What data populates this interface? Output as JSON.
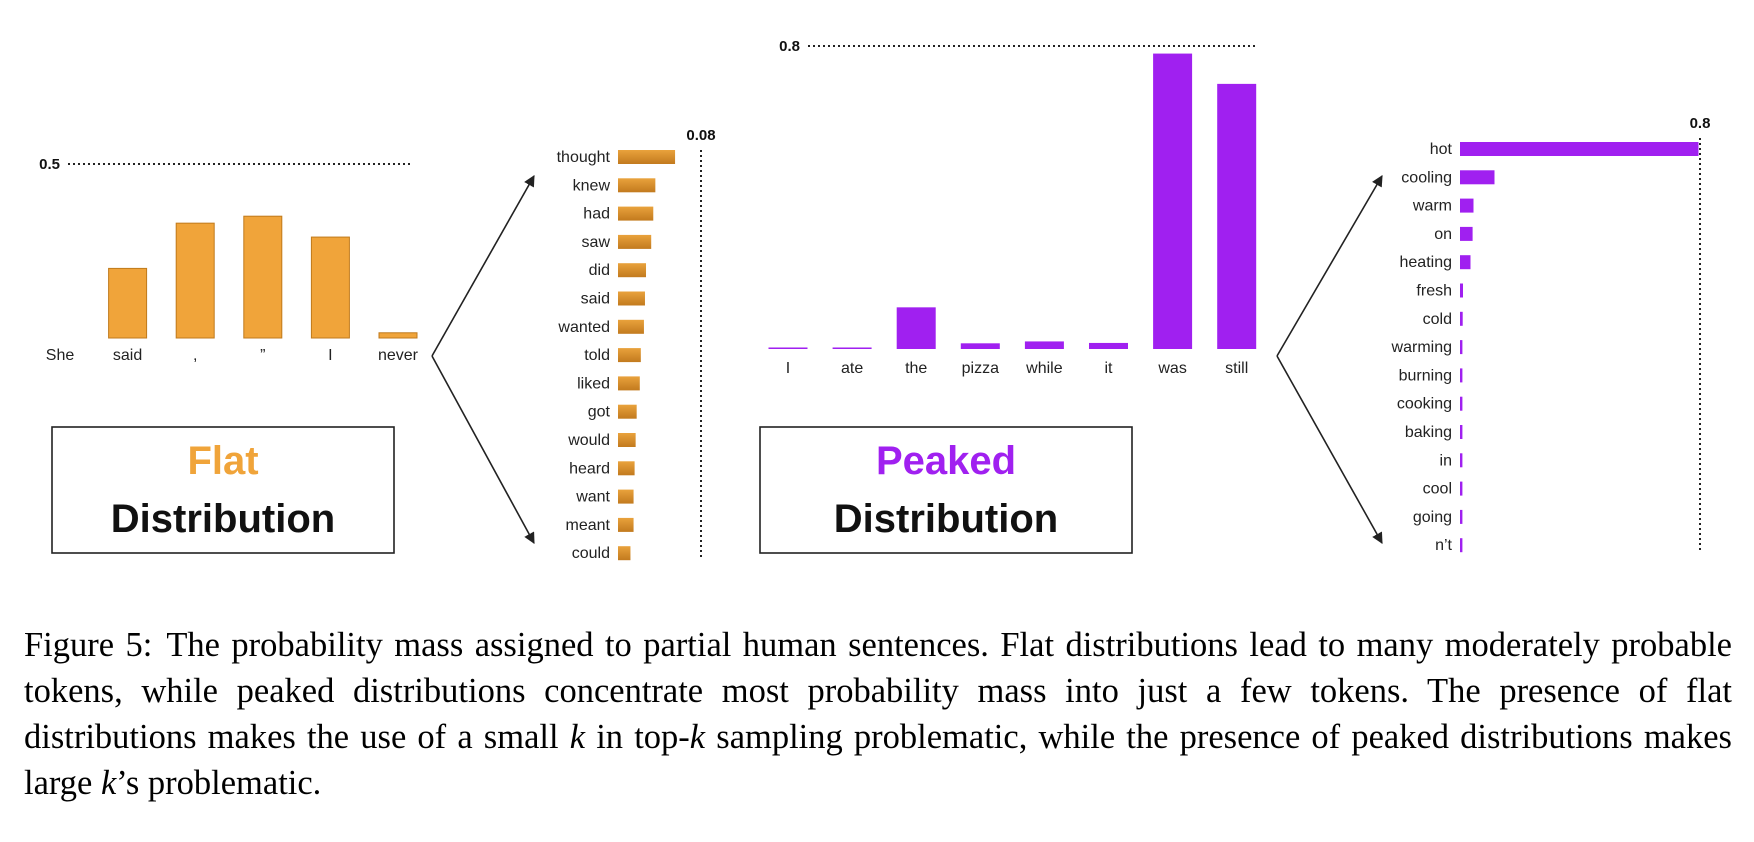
{
  "colors": {
    "flat": "#F0A43A",
    "flat_edge": "#C07A1C",
    "peaked": "#A020F0",
    "arrow": "#222222"
  },
  "chart_data": [
    {
      "type": "bar",
      "name": "flat-context",
      "categories": [
        "She",
        "said",
        ",",
        "”",
        "I",
        "never"
      ],
      "values": [
        0,
        0.2,
        0.33,
        0.35,
        0.29,
        0.015
      ],
      "ref_line": {
        "value": 0.5,
        "label": "0.5"
      },
      "ylim": [
        0,
        0.5
      ]
    },
    {
      "type": "bar",
      "orientation": "horizontal",
      "name": "flat-next-token",
      "categories": [
        "thought",
        "knew",
        "had",
        "saw",
        "did",
        "said",
        "wanted",
        "told",
        "liked",
        "got",
        "would",
        "heard",
        "want",
        "meant",
        "could"
      ],
      "values": [
        0.055,
        0.036,
        0.034,
        0.032,
        0.027,
        0.026,
        0.025,
        0.022,
        0.021,
        0.018,
        0.017,
        0.016,
        0.015,
        0.015,
        0.012
      ],
      "ref_line": {
        "value": 0.08,
        "label": "0.08"
      },
      "xlim": [
        0,
        0.08
      ]
    },
    {
      "type": "bar",
      "name": "peaked-context",
      "categories": [
        "I",
        "ate",
        "the",
        "pizza",
        "while",
        "it",
        "was",
        "still"
      ],
      "values": [
        0.004,
        0.004,
        0.11,
        0.015,
        0.02,
        0.016,
        0.78,
        0.7
      ],
      "ref_line": {
        "value": 0.8,
        "label": "0.8"
      },
      "ylim": [
        0,
        0.8
      ]
    },
    {
      "type": "bar",
      "orientation": "horizontal",
      "name": "peaked-next-token",
      "categories": [
        "hot",
        "cooling",
        "warm",
        "on",
        "heating",
        "fresh",
        "cold",
        "warming",
        "burning",
        "cooking",
        "baking",
        "in",
        "cool",
        "going",
        "n’t"
      ],
      "values": [
        0.795,
        0.115,
        0.045,
        0.042,
        0.035,
        0.01,
        0.009,
        0.008,
        0.008,
        0.008,
        0.008,
        0.008,
        0.008,
        0.008,
        0.008
      ],
      "ref_line": {
        "value": 0.8,
        "label": "0.8"
      },
      "xlim": [
        0,
        0.8
      ]
    }
  ],
  "boxes": {
    "flat": {
      "word": "Flat",
      "label": "Distribution"
    },
    "peaked": {
      "word": "Peaked",
      "label": "Distribution"
    }
  },
  "caption": {
    "figure_number": "Figure 5:",
    "text_before_k1": "The probability mass assigned to partial human sentences. Flat distributions lead to many moderately probable tokens, while peaked distributions concentrate most probability mass into just a few tokens.  The presence of flat distributions makes the use of a small ",
    "k": "k",
    "text_mid1": " in top-",
    "text_mid2": " sampling problematic, while the presence of peaked distributions makes large ",
    "text_end": "’s problematic."
  }
}
